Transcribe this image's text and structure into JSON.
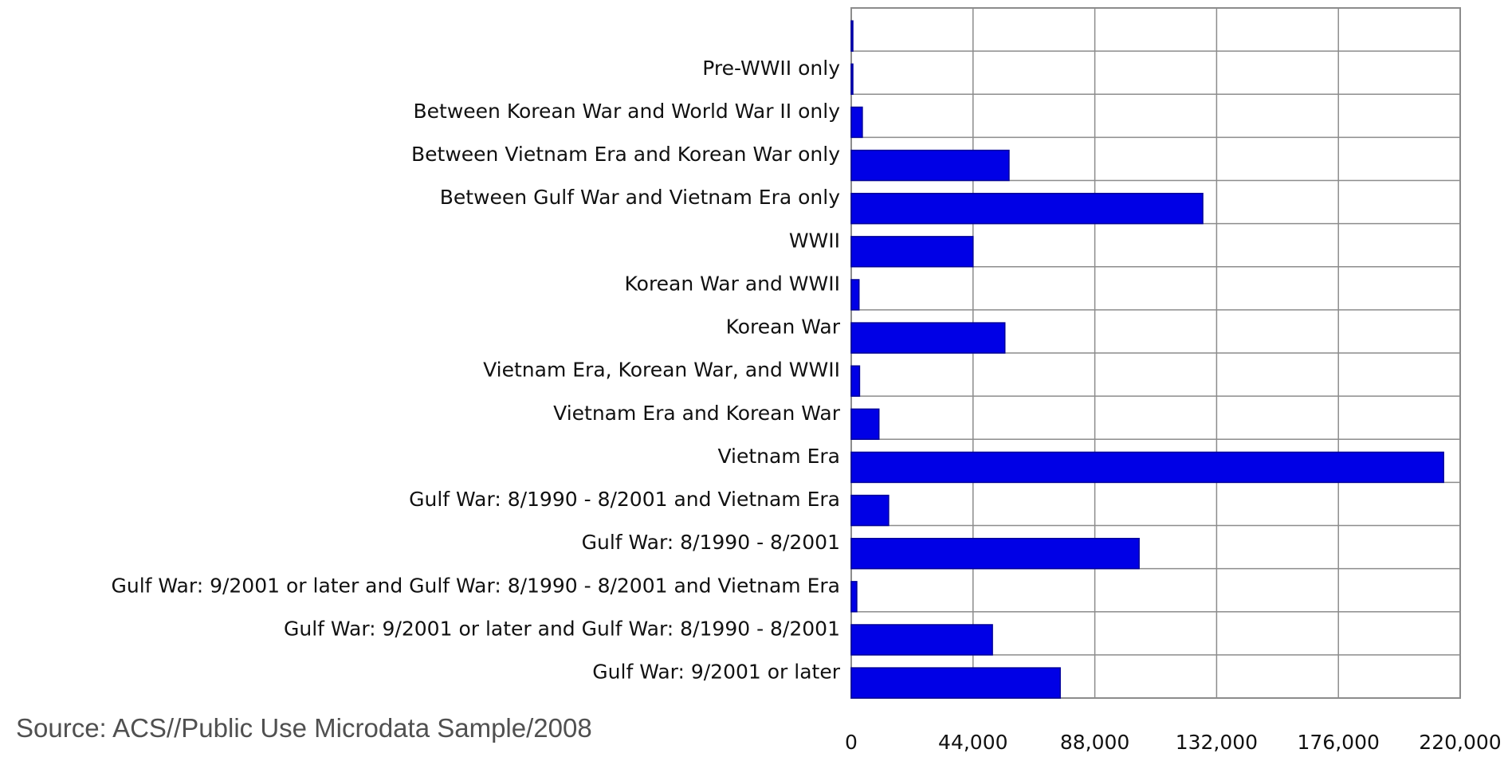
{
  "source_note": "Source: ACS//Public Use Microdata Sample/2008",
  "colors": {
    "bar": "#0000e6",
    "bar_edge": "#00009a",
    "grid": "#8c8c8c"
  },
  "chart_data": {
    "type": "bar",
    "orientation": "horizontal",
    "title": "",
    "xlabel": "",
    "ylabel": "",
    "grid": true,
    "xlim": [
      0,
      220000
    ],
    "x_ticks": [
      0,
      44000,
      88000,
      132000,
      176000,
      220000
    ],
    "x_tick_labels": [
      "0",
      "44,000",
      "88,000",
      "132,000",
      "176,000",
      "220,000"
    ],
    "categories": [
      "",
      "Pre-WWII only",
      "Between Korean War and World War II only",
      "Between Vietnam Era and Korean War only",
      "Between Gulf War and Vietnam Era only",
      "WWII",
      "Korean War and WWII",
      "Korean War",
      "Vietnam Era, Korean War, and WWII",
      "Vietnam Era and Korean War",
      "Vietnam Era",
      "Gulf War: 8/1990 - 8/2001 and Vietnam Era",
      "Gulf War: 8/1990 - 8/2001",
      "Gulf War: 9/2001 or later and Gulf War: 8/1990 - 8/2001 and Vietnam Era",
      "Gulf War: 9/2001 or later and Gulf War: 8/1990 - 8/2001",
      "Gulf War: 9/2001 or later"
    ],
    "values": [
      400,
      500,
      4000,
      57000,
      127000,
      44000,
      2800,
      55500,
      3000,
      10000,
      214000,
      13500,
      104000,
      2000,
      51000,
      75500
    ]
  }
}
